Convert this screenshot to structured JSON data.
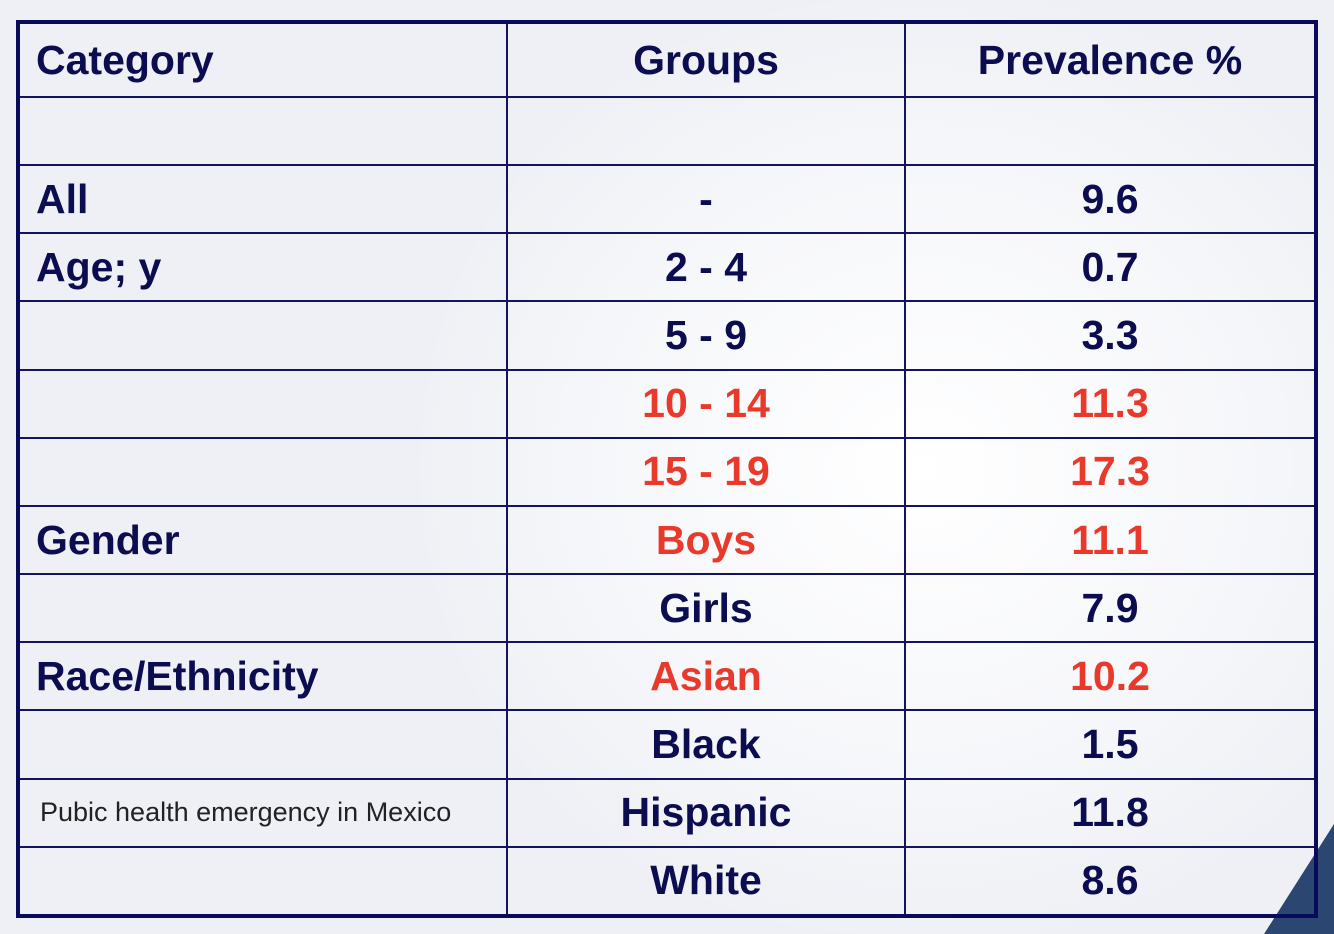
{
  "colors": {
    "text": "#0c0c50",
    "highlight": "#e8392a",
    "border": "#0a0a5c"
  },
  "table": {
    "headers": [
      "Category",
      "Groups",
      "Prevalence %"
    ],
    "rows": [
      {
        "category": "",
        "group": "",
        "prevalence": "",
        "highlight": false
      },
      {
        "category": "All",
        "group": "-",
        "prevalence": "9.6",
        "highlight": false
      },
      {
        "category": "Age; y",
        "group": "2 - 4",
        "prevalence": "0.7",
        "highlight": false
      },
      {
        "category": "",
        "group": "5 - 9",
        "prevalence": "3.3",
        "highlight": false
      },
      {
        "category": "",
        "group": "10 - 14",
        "prevalence": "11.3",
        "highlight": true
      },
      {
        "category": "",
        "group": "15 - 19",
        "prevalence": "17.3",
        "highlight": true
      },
      {
        "category": "Gender",
        "group": "Boys",
        "prevalence": "11.1",
        "highlight": true
      },
      {
        "category": "",
        "group": "Girls",
        "prevalence": "7.9",
        "highlight": false
      },
      {
        "category": "Race/Ethnicity",
        "group": "Asian",
        "prevalence": "10.2",
        "highlight": true
      },
      {
        "category": "",
        "group": "Black",
        "prevalence": "1.5",
        "highlight": false
      },
      {
        "category": "Pubic health emergency in Mexico",
        "group": "Hispanic",
        "prevalence": "11.8",
        "highlight": false,
        "note": true
      },
      {
        "category": "",
        "group": "White",
        "prevalence": "8.6",
        "highlight": false
      }
    ]
  }
}
